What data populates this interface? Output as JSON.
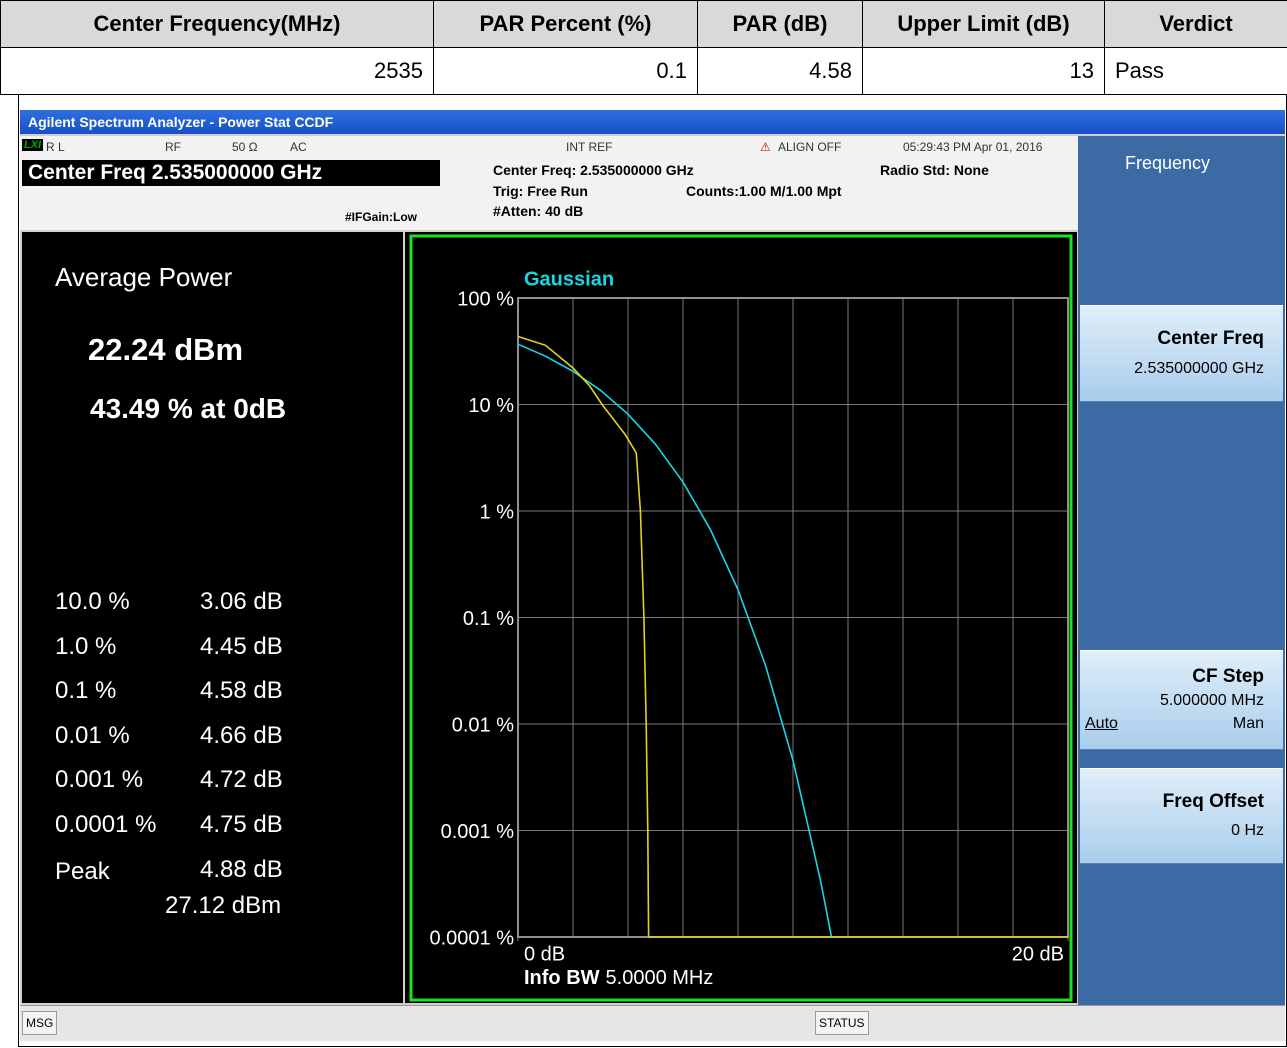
{
  "table": {
    "header": [
      "Center Frequency(MHz)",
      "PAR Percent (%)",
      "PAR (dB)",
      "Upper Limit (dB)",
      "Verdict"
    ],
    "rows": [
      [
        2535,
        0.1,
        4.58,
        13,
        "Pass"
      ]
    ]
  },
  "window": {
    "title": "Agilent Spectrum Analyzer - Power Stat CCDF"
  },
  "status": {
    "logo": "LXI",
    "rl": "R L",
    "rf": "RF",
    "impedance": "50 Ω",
    "coupling": "AC",
    "int_ref": "INT REF",
    "align": "ALIGN OFF",
    "timestamp": "05:29:43 PM Apr 01, 2016",
    "center_freq": "Center Freq 2.535000000 GHz",
    "if_gain": "#IFGain:Low",
    "center_freq_info": "Center Freq: 2.535000000 GHz",
    "trig": "Trig: Free Run",
    "atten": "#Atten: 40 dB",
    "radio_std": "Radio Std: None",
    "counts": "Counts:1.00 M/1.00 Mpt"
  },
  "results": {
    "title": "Average Power",
    "avg_power": "22.24 dBm",
    "at_0db": "43.49 % at 0dB",
    "rows": [
      [
        "10.0 %",
        "3.06 dB"
      ],
      [
        "1.0 %",
        "4.45 dB"
      ],
      [
        "0.1 %",
        "4.58 dB"
      ],
      [
        "0.01 %",
        "4.66 dB"
      ],
      [
        "0.001 %",
        "4.72 dB"
      ],
      [
        "0.0001 %",
        "4.75 dB"
      ]
    ],
    "peak": {
      "label": "Peak",
      "par": "4.88 dB",
      "power": "27.12 dBm"
    }
  },
  "chart_data": {
    "type": "line",
    "log_y": true,
    "grid": true,
    "info_bw_label": "Info BW",
    "info_bw_value": "5.0000 MHz",
    "xlim": [
      0,
      20
    ],
    "xticks": [
      {
        "value": 0,
        "label": "0 dB"
      },
      {
        "value": 20,
        "label": "20 dB"
      }
    ],
    "ylim": [
      0.0001,
      100
    ],
    "yticks": [
      {
        "value": 100,
        "label": "100 %"
      },
      {
        "value": 10,
        "label": "10 %"
      },
      {
        "value": 1,
        "label": "1 %"
      },
      {
        "value": 0.1,
        "label": "0.1 %"
      },
      {
        "value": 0.01,
        "label": "0.01 %"
      },
      {
        "value": 0.001,
        "label": "0.001 %"
      },
      {
        "value": 0.0001,
        "label": "0.0001 %"
      }
    ],
    "series": [
      {
        "name": "Gaussian",
        "color": "#19d6e0",
        "x": [
          0,
          1,
          2,
          3,
          4,
          5,
          6,
          7,
          8,
          9,
          10,
          11,
          11.4
        ],
        "values": [
          36.79,
          28.4,
          20.5,
          13.6,
          8.11,
          4.23,
          1.87,
          0.666,
          0.182,
          0.0355,
          0.00454,
          0.00034,
          0.0001
        ]
      },
      {
        "color": "#e6d21a",
        "x": [
          0,
          1,
          2,
          2.6,
          3.06,
          3.9,
          4.3,
          4.45,
          4.58,
          4.66,
          4.72,
          4.75,
          20
        ],
        "values": [
          43.49,
          36,
          22,
          15,
          10,
          5.2,
          3.5,
          1,
          0.1,
          0.01,
          0.001,
          0.0001,
          0.0001
        ]
      }
    ]
  },
  "softkeys": {
    "menu": "Frequency",
    "center_freq": {
      "label": "Center Freq",
      "value": "2.535000000 GHz"
    },
    "cf_step": {
      "label": "CF Step",
      "value": "5.000000 MHz",
      "auto": "Auto",
      "man": "Man"
    },
    "freq_offset": {
      "label": "Freq Offset",
      "value": "0 Hz"
    }
  },
  "bottom": {
    "msg": "MSG",
    "status": "STATUS"
  }
}
